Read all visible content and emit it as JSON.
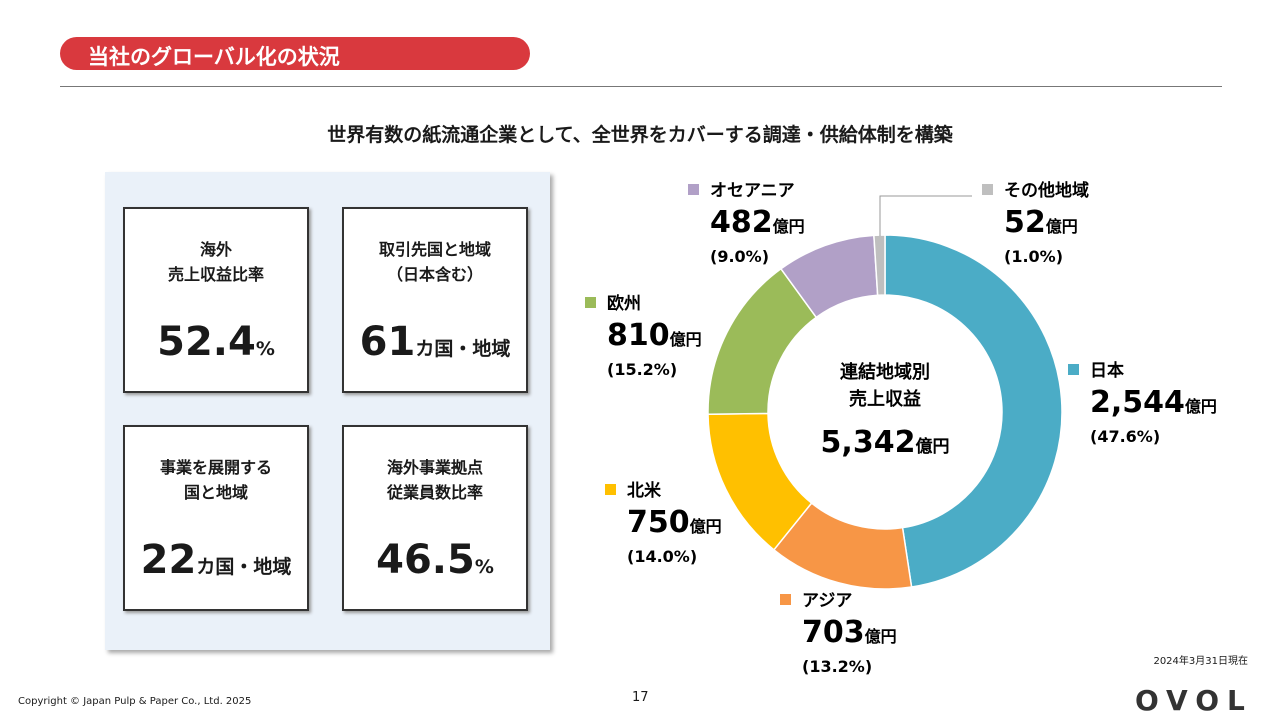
{
  "header": {
    "title": "当社のグローバル化の状況"
  },
  "subtitle": "世界有数の紙流通企業として、全世界をカバーする調達・供給体制を構築",
  "kpis": [
    {
      "label": [
        "海外",
        "売上収益比率"
      ],
      "value": 52.4,
      "unit": "%"
    },
    {
      "label": [
        "取引先国と地域",
        "（日本含む）"
      ],
      "value": 61,
      "unit": "カ国・地域"
    },
    {
      "label": [
        "事業を展開する",
        "国と地域"
      ],
      "value": 22,
      "unit": "カ国・地域"
    },
    {
      "label": [
        "海外事業拠点",
        "従業員数比率"
      ],
      "value": 46.5,
      "unit": "%"
    }
  ],
  "chart_data": {
    "type": "donut",
    "center_label": [
      "連結地域別",
      "売上収益"
    ],
    "total": 5342,
    "total_label": "5,342",
    "unit": "億円",
    "categories": [
      "日本",
      "アジア",
      "北米",
      "欧州",
      "オセアニア",
      "その他地域"
    ],
    "values": [
      2544,
      703,
      750,
      810,
      482,
      52
    ],
    "value_labels": [
      "2,544",
      "703",
      "750",
      "810",
      "482",
      "52"
    ],
    "shares": [
      47.6,
      13.2,
      14.0,
      15.2,
      9.0,
      1.0
    ],
    "share_labels": [
      "(47.6%)",
      "(13.2%)",
      "(14.0%)",
      "(15.2%)",
      "(9.0%)",
      "(1.0%)"
    ],
    "colors": [
      "#4bacc6",
      "#f79646",
      "#ffc000",
      "#9bbb59",
      "#b1a0c7",
      "#bfbfbf"
    ]
  },
  "note": "2024年3月31日現在",
  "footer": {
    "copyright": "Copyright © Japan Pulp & Paper Co., Ltd. 2025",
    "page": 17,
    "logo": "OVOL"
  }
}
